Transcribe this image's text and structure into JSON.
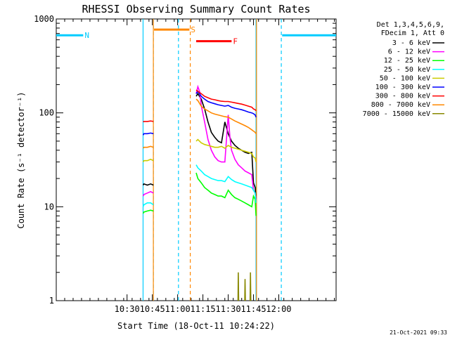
{
  "chart_data": {
    "type": "line",
    "title": "RHESSI Observing Summary Count Rates",
    "xlabel": "Start Time (18-Oct-11 10:24:22)",
    "ylabel": "Count Rate (s⁻¹ detector⁻¹)",
    "y_scale": "log",
    "xlim_minutes": [
      -36,
      130
    ],
    "ylim": [
      1,
      1000
    ],
    "x_ticks": [
      {
        "t": 6,
        "label": "10:30"
      },
      {
        "t": 21,
        "label": "10:45"
      },
      {
        "t": 36,
        "label": "11:00"
      },
      {
        "t": 51,
        "label": "11:15"
      },
      {
        "t": 66,
        "label": "11:30"
      },
      {
        "t": 81,
        "label": "11:45"
      },
      {
        "t": 96,
        "label": "12:00"
      }
    ],
    "y_ticks": [
      {
        "v": 1,
        "label": "1"
      },
      {
        "v": 10,
        "label": "10"
      },
      {
        "v": 100,
        "label": "100"
      },
      {
        "v": 1000,
        "label": "1000"
      }
    ],
    "legend_header": [
      "Det 1,3,4,5,6,9,",
      "FDecim 1, Att 0"
    ],
    "legend_position": "right",
    "footer_date": "21-Oct-2021 09:33",
    "series": [
      {
        "name": "3 - 6 keV",
        "color": "#000000",
        "segments": [
          [
            [
              15.5,
              17
            ],
            [
              16,
              17.5
            ],
            [
              18,
              17
            ],
            [
              20,
              17.5
            ],
            [
              21.6,
              17
            ]
          ],
          [
            [
              47,
              150
            ],
            [
              48,
              160
            ],
            [
              50,
              140
            ],
            [
              52,
              110
            ],
            [
              54,
              80
            ],
            [
              56,
              62
            ],
            [
              58,
              55
            ],
            [
              60,
              50
            ],
            [
              62,
              48
            ],
            [
              64,
              80
            ],
            [
              66,
              60
            ],
            [
              68,
              50
            ],
            [
              70,
              45
            ],
            [
              72,
              42
            ],
            [
              74,
              40
            ],
            [
              76,
              38
            ],
            [
              78,
              37
            ],
            [
              80,
              38
            ],
            [
              81,
              18
            ],
            [
              82,
              16
            ],
            [
              82.5,
              12
            ]
          ]
        ]
      },
      {
        "name": "6 - 12 keV",
        "color": "#ff00ff",
        "segments": [
          [
            [
              15.5,
              13
            ],
            [
              16,
              13.5
            ],
            [
              18,
              14
            ],
            [
              20,
              14.5
            ],
            [
              21.6,
              14
            ]
          ],
          [
            [
              47,
              160
            ],
            [
              48,
              190
            ],
            [
              49,
              170
            ],
            [
              50,
              120
            ],
            [
              52,
              80
            ],
            [
              54,
              52
            ],
            [
              56,
              40
            ],
            [
              58,
              34
            ],
            [
              60,
              31
            ],
            [
              62,
              30
            ],
            [
              64,
              30
            ],
            [
              66,
              95
            ],
            [
              67,
              55
            ],
            [
              68,
              40
            ],
            [
              70,
              32
            ],
            [
              72,
              28
            ],
            [
              74,
              26
            ],
            [
              76,
              24
            ],
            [
              78,
              23
            ],
            [
              80,
              22
            ],
            [
              81,
              15
            ],
            [
              82,
              14
            ],
            [
              82.5,
              12
            ]
          ]
        ]
      },
      {
        "name": "12 - 25 keV",
        "color": "#00ff00",
        "segments": [
          [
            [
              15.5,
              8.5
            ],
            [
              16,
              8.8
            ],
            [
              18,
              9
            ],
            [
              20,
              9.2
            ],
            [
              21.6,
              9
            ]
          ],
          [
            [
              47,
              23
            ],
            [
              48,
              20
            ],
            [
              50,
              18
            ],
            [
              52,
              16
            ],
            [
              54,
              15
            ],
            [
              56,
              14
            ],
            [
              58,
              13.5
            ],
            [
              60,
              13
            ],
            [
              62,
              13
            ],
            [
              64,
              12.5
            ],
            [
              66,
              15
            ],
            [
              68,
              13.5
            ],
            [
              70,
              12.5
            ],
            [
              72,
              12
            ],
            [
              74,
              11.5
            ],
            [
              76,
              11
            ],
            [
              78,
              10.5
            ],
            [
              80,
              10
            ],
            [
              81,
              13
            ],
            [
              82,
              12
            ],
            [
              82.5,
              8
            ]
          ]
        ]
      },
      {
        "name": "25 - 50 keV",
        "color": "#00ffff",
        "segments": [
          [
            [
              15.5,
              10
            ],
            [
              16,
              10.5
            ],
            [
              18,
              11
            ],
            [
              20,
              11
            ],
            [
              21.6,
              10.5
            ]
          ],
          [
            [
              47,
              28
            ],
            [
              48,
              26
            ],
            [
              50,
              24
            ],
            [
              52,
              22
            ],
            [
              54,
              21
            ],
            [
              56,
              20
            ],
            [
              58,
              19.5
            ],
            [
              60,
              19
            ],
            [
              62,
              19
            ],
            [
              64,
              18.5
            ],
            [
              66,
              21
            ],
            [
              68,
              19.5
            ],
            [
              70,
              18.5
            ],
            [
              72,
              18
            ],
            [
              74,
              17.5
            ],
            [
              76,
              17
            ],
            [
              78,
              16.5
            ],
            [
              80,
              16
            ],
            [
              81,
              15
            ],
            [
              82,
              14
            ],
            [
              82.5,
              11
            ]
          ]
        ]
      },
      {
        "name": "50 - 100 keV",
        "color": "#cccc00",
        "segments": [
          [
            [
              15.5,
              30
            ],
            [
              16,
              31
            ],
            [
              18,
              31
            ],
            [
              20,
              32
            ],
            [
              21.6,
              31
            ]
          ],
          [
            [
              47,
              50
            ],
            [
              48,
              52
            ],
            [
              50,
              48
            ],
            [
              52,
              46
            ],
            [
              54,
              45
            ],
            [
              56,
              44
            ],
            [
              58,
              43
            ],
            [
              60,
              43
            ],
            [
              62,
              44
            ],
            [
              64,
              42
            ],
            [
              66,
              45
            ],
            [
              68,
              43
            ],
            [
              70,
              42
            ],
            [
              72,
              41
            ],
            [
              74,
              40
            ],
            [
              76,
              39
            ],
            [
              78,
              38
            ],
            [
              80,
              37
            ],
            [
              81,
              34
            ],
            [
              82,
              33
            ],
            [
              82.5,
              30
            ]
          ]
        ]
      },
      {
        "name": "100 - 300 keV",
        "color": "#0000ff",
        "segments": [
          [
            [
              15.5,
              58
            ],
            [
              16,
              60
            ],
            [
              18,
              60
            ],
            [
              20,
              61
            ],
            [
              21.6,
              60
            ]
          ],
          [
            [
              47,
              160
            ],
            [
              48,
              170
            ],
            [
              50,
              150
            ],
            [
              52,
              140
            ],
            [
              54,
              132
            ],
            [
              56,
              128
            ],
            [
              58,
              125
            ],
            [
              60,
              122
            ],
            [
              62,
              120
            ],
            [
              64,
              118
            ],
            [
              66,
              120
            ],
            [
              68,
              115
            ],
            [
              70,
              112
            ],
            [
              72,
              110
            ],
            [
              74,
              108
            ],
            [
              76,
              105
            ],
            [
              78,
              102
            ],
            [
              80,
              100
            ],
            [
              81,
              98
            ],
            [
              82,
              95
            ],
            [
              82.5,
              90
            ]
          ]
        ]
      },
      {
        "name": "300 - 800 keV",
        "color": "#ff0000",
        "segments": [
          [
            [
              15.5,
              80
            ],
            [
              16,
              81
            ],
            [
              18,
              81
            ],
            [
              20,
              82
            ],
            [
              21.6,
              81
            ]
          ],
          [
            [
              47,
              175
            ],
            [
              48,
              170
            ],
            [
              50,
              160
            ],
            [
              52,
              150
            ],
            [
              54,
              145
            ],
            [
              56,
              140
            ],
            [
              58,
              138
            ],
            [
              60,
              135
            ],
            [
              62,
              133
            ],
            [
              64,
              132
            ],
            [
              66,
              132
            ],
            [
              68,
              130
            ],
            [
              70,
              128
            ],
            [
              72,
              126
            ],
            [
              74,
              124
            ],
            [
              76,
              121
            ],
            [
              78,
              118
            ],
            [
              80,
              115
            ],
            [
              81,
              110
            ],
            [
              82,
              108
            ],
            [
              82.5,
              105
            ]
          ]
        ]
      },
      {
        "name": "800 - 7000 keV",
        "color": "#ff8800",
        "segments": [
          [
            [
              15.5,
              42
            ],
            [
              16,
              43
            ],
            [
              18,
              43
            ],
            [
              20,
              44
            ],
            [
              21.6,
              43
            ]
          ],
          [
            [
              47,
              140
            ],
            [
              48,
              135
            ],
            [
              50,
              118
            ],
            [
              52,
              110
            ],
            [
              54,
              105
            ],
            [
              56,
              100
            ],
            [
              58,
              97
            ],
            [
              60,
              95
            ],
            [
              62,
              93
            ],
            [
              64,
              91
            ],
            [
              66,
              90
            ],
            [
              68,
              86
            ],
            [
              70,
              82
            ],
            [
              72,
              79
            ],
            [
              74,
              76
            ],
            [
              76,
              73
            ],
            [
              78,
              70
            ],
            [
              80,
              66
            ],
            [
              81,
              64
            ],
            [
              82,
              62
            ],
            [
              82.5,
              60
            ]
          ]
        ]
      },
      {
        "name": "7000 - 15000 keV",
        "color": "#888800",
        "segments": [
          [
            [
              71.8,
              1
            ],
            [
              72,
              2
            ],
            [
              72.2,
              1
            ]
          ],
          [
            [
              75.8,
              1
            ],
            [
              76,
              1.7
            ],
            [
              76.2,
              1
            ]
          ],
          [
            [
              79,
              1
            ],
            [
              79.2,
              2
            ],
            [
              79.4,
              1
            ]
          ]
        ]
      }
    ],
    "flags": [
      {
        "label": "N",
        "color": "#00ccff",
        "start": -36,
        "end": -20,
        "y": 670
      },
      {
        "label": "",
        "color": "#00ccff",
        "start": 98,
        "end": 130,
        "y": 670
      },
      {
        "label": "S",
        "color": "#ff8800",
        "start": 22,
        "end": 43,
        "y": 770
      },
      {
        "label": "F",
        "color": "#ff0000",
        "start": 47,
        "end": 68,
        "y": 580
      }
    ],
    "vlines": [
      {
        "t": 21.6,
        "color": "#00ccff",
        "style": "dashed"
      },
      {
        "t": 36.5,
        "color": "#00ccff",
        "style": "dashed"
      },
      {
        "t": 15.5,
        "color": "#00ccff",
        "style": "solid"
      },
      {
        "t": 21.6,
        "color": "#ff8800",
        "style": "solid"
      },
      {
        "t": 43.5,
        "color": "#ff8800",
        "style": "dashed"
      },
      {
        "t": 97.5,
        "color": "#00ccff",
        "style": "dashed"
      },
      {
        "t": 82.5,
        "color": "#00ccff",
        "style": "solid"
      },
      {
        "t": 82.8,
        "color": "#ff8800",
        "style": "solid"
      }
    ]
  }
}
